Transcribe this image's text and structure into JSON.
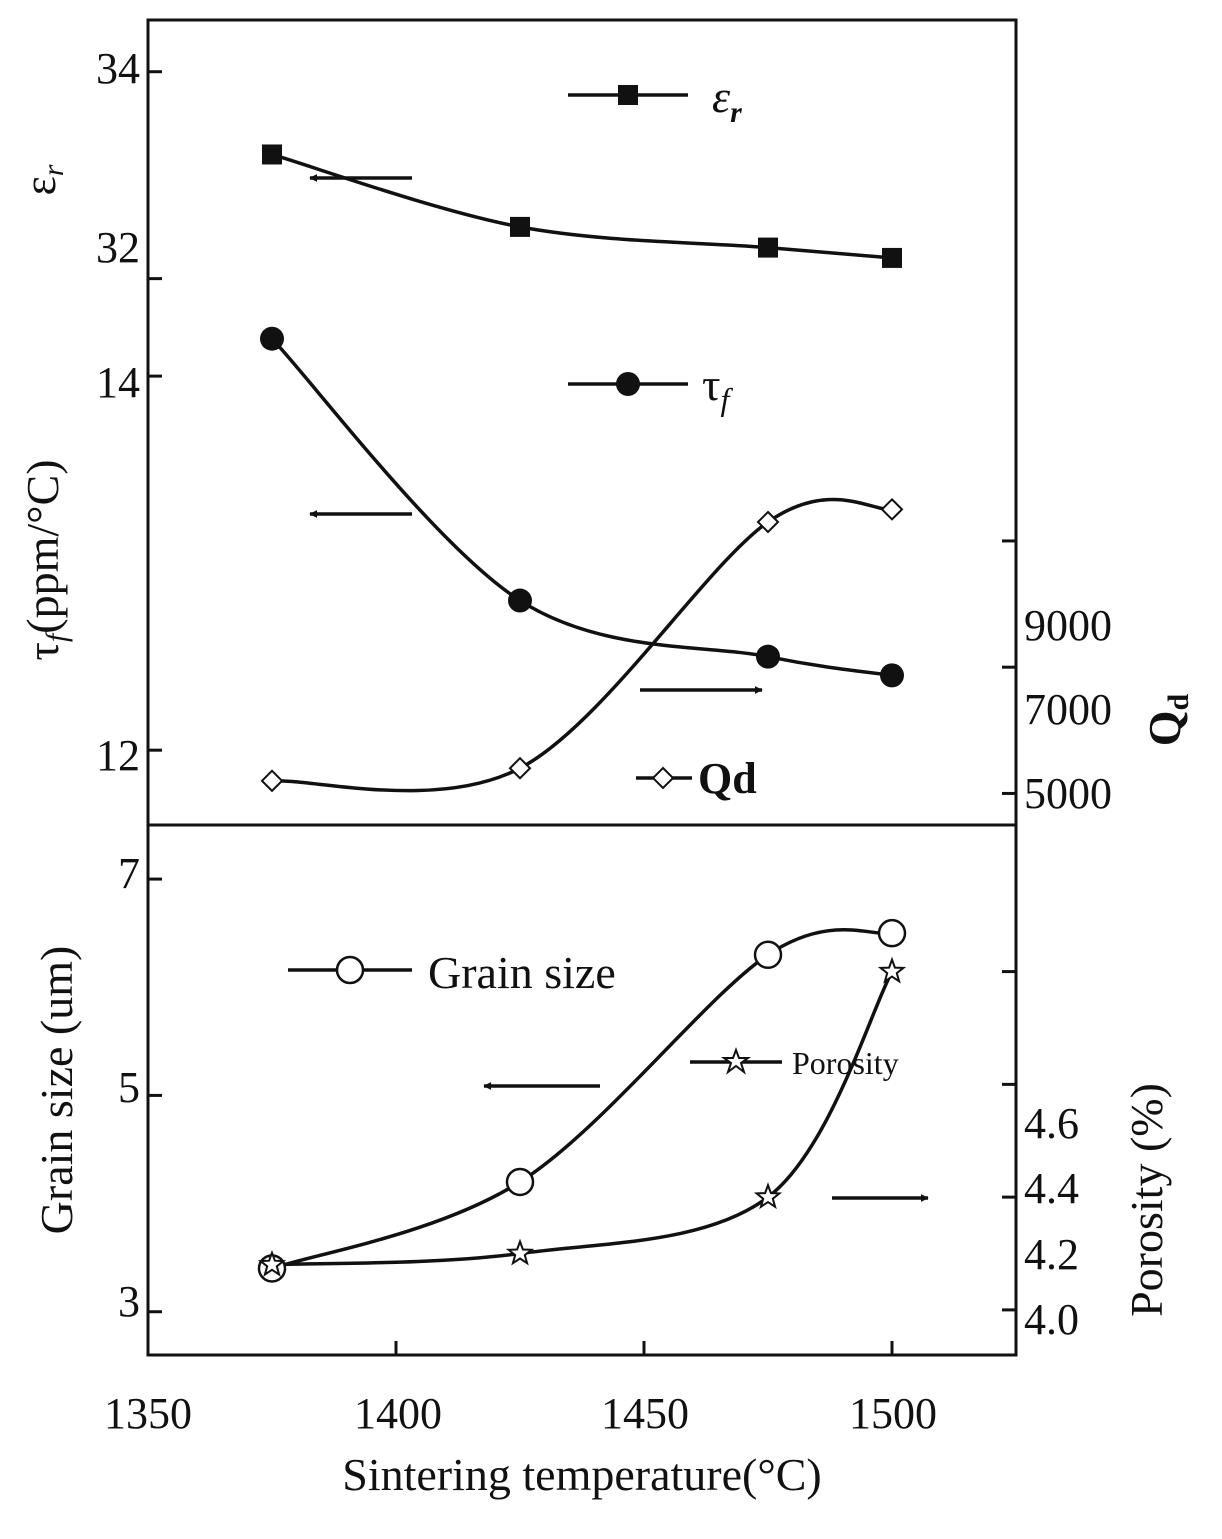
{
  "chart_data": {
    "type": "line",
    "x": [
      1375,
      1425,
      1475,
      1500
    ],
    "xlim": [
      1350,
      1525
    ],
    "xticks": [
      "1350",
      "1400",
      "1450",
      "1500"
    ],
    "xlabel": "Sintering temperature(°C)",
    "panels": [
      {
        "name": "epsilon_r",
        "ylabel": "ε",
        "ylabel_sub": "r",
        "yticks": [
          "32",
          "34"
        ],
        "ylim": [
          31.6,
          34.5
        ],
        "series": [
          {
            "name": "ε",
            "sub": "r",
            "marker": "filled-square",
            "axis": "left",
            "values": [
              33.2,
              32.5,
              32.3,
              32.2
            ]
          }
        ]
      },
      {
        "name": "tau_f_and_Qd",
        "ylabel": "(ppm/°C)",
        "ylabel_prefix": "τ",
        "ylabel_prefix_sub": "f",
        "yticks": [
          "12",
          "14"
        ],
        "ylim": [
          11.6,
          14.3
        ],
        "y2label": "Q",
        "y2label_sub": "d",
        "y2ticks": [
          "5000",
          "7000",
          "9000"
        ],
        "y2lim": [
          4500,
          12500
        ],
        "series": [
          {
            "name": "τ",
            "sub": "f",
            "marker": "filled-circle",
            "axis": "left",
            "values": [
              14.2,
              12.8,
              12.5,
              12.4
            ]
          },
          {
            "name": "Qd",
            "marker": "open-diamond",
            "axis": "right",
            "values": [
              5200,
              5400,
              9300,
              9500
            ]
          }
        ]
      },
      {
        "name": "grain_size_and_porosity",
        "ylabel": "Grain size (um)",
        "yticks": [
          "3",
          "5",
          "7"
        ],
        "ylim": [
          2.6,
          7.5
        ],
        "y2label": "Porosity (%)",
        "y2ticks": [
          "4.0",
          "4.2",
          "4.4",
          "4.6"
        ],
        "y2lim": [
          3.92,
          4.86
        ],
        "series": [
          {
            "name": "Grain size",
            "marker": "open-circle",
            "axis": "left",
            "values": [
              3.4,
              4.2,
              6.3,
              6.5
            ]
          },
          {
            "name": "Porosity",
            "marker": "open-star",
            "axis": "right",
            "values": [
              4.08,
              4.1,
              4.2,
              4.6
            ]
          }
        ]
      }
    ]
  }
}
